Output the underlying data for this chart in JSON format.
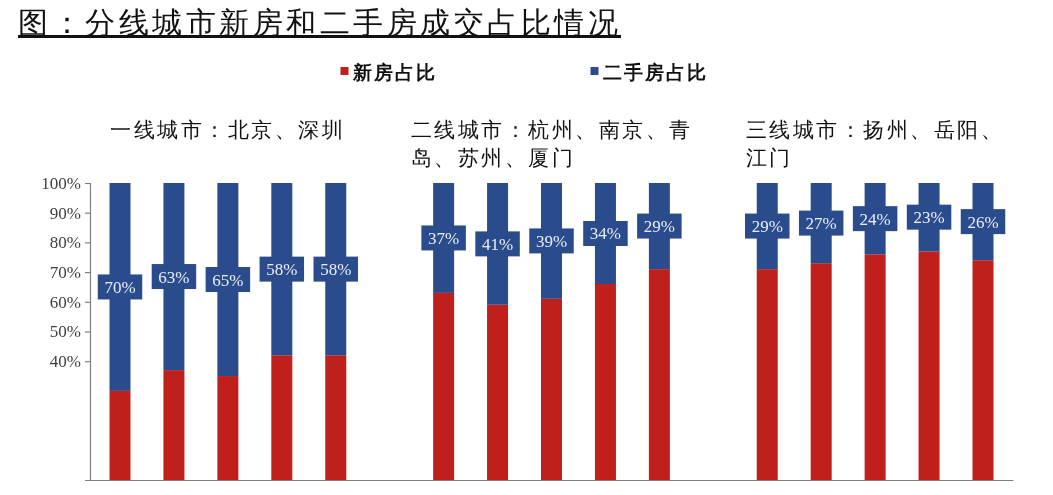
{
  "chart_data": {
    "type": "bar",
    "title": "图：分线城市新房和二手房成交占比情况",
    "annotations": [
      "一线城市：北京、深圳",
      "二线城市：杭州、南京、青岛、苏州、厦门",
      "三线城市：扬州、岳阳、江门"
    ],
    "categories": [
      null,
      null,
      null,
      null,
      null,
      null,
      null,
      null,
      null,
      null,
      null,
      null,
      null,
      null,
      null,
      null,
      null
    ],
    "stacked": true,
    "series": [
      {
        "name": "新房占比",
        "color": "#c0201b",
        "values": [
          30,
          37,
          35,
          42,
          42,
          null,
          63,
          59,
          61,
          66,
          71,
          null,
          71,
          73,
          76,
          77,
          74
        ]
      },
      {
        "name": "二手房占比",
        "color": "#2b4c8c",
        "values": [
          70,
          63,
          65,
          58,
          58,
          null,
          37,
          41,
          39,
          34,
          29,
          null,
          29,
          27,
          24,
          23,
          26
        ],
        "value_labels": [
          "70%",
          "63%",
          "65%",
          "58%",
          "58%",
          null,
          "37%",
          "41%",
          "39%",
          "34%",
          "29%",
          null,
          "29%",
          "27%",
          "24%",
          "23%",
          "26%"
        ]
      }
    ],
    "ylim": [
      0,
      100
    ],
    "yticks": [
      {
        "value": 40,
        "label": "40%"
      },
      {
        "value": 50,
        "label": "50%"
      },
      {
        "value": 60,
        "label": "60%"
      },
      {
        "value": 70,
        "label": "70%"
      },
      {
        "value": 80,
        "label": "80%"
      },
      {
        "value": 90,
        "label": "90%"
      },
      {
        "value": 100,
        "label": "100%"
      }
    ],
    "legend": "top"
  }
}
